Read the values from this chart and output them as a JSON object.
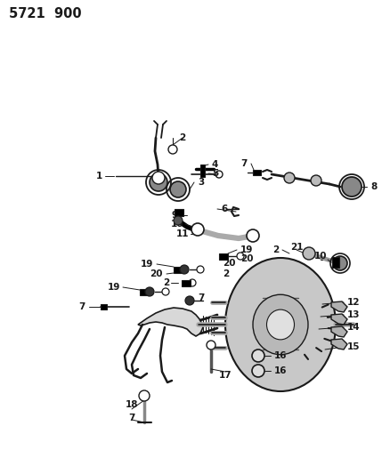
{
  "bg_color": "#ffffff",
  "line_color": "#1a1a1a",
  "fig_width": 4.29,
  "fig_height": 5.33,
  "dpi": 100,
  "header": "5721  900",
  "header_fontsize": 10.5,
  "label_fontsize": 7.5
}
